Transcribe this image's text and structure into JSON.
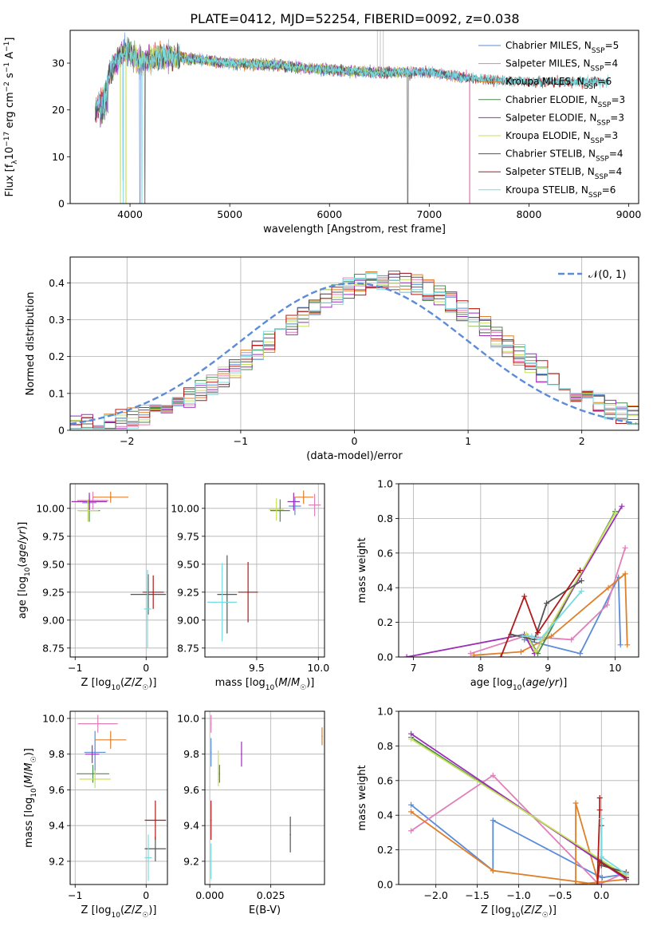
{
  "figure": {
    "title": "PLATE=0412, MJD=52254, FIBERID=0092, z=0.038"
  },
  "colors": {
    "Chabrier MILES": "#5b8bd9",
    "Salpeter MILES": "#e07fb9",
    "Kroupa MILES": "#e07f2a",
    "Chabrier ELODIE": "#4d8a4d",
    "Salpeter ELODIE": "#9b2fb8",
    "Kroupa ELODIE": "#c7e05a",
    "Chabrier STELIB": "#555555",
    "Salpeter STELIB": "#b01a1a",
    "Kroupa STELIB": "#78dbe0",
    "normal": "#5b8bd9"
  },
  "chart_data": [
    {
      "id": "spectrum",
      "type": "line",
      "xlabel": "wavelength [Angstrom, rest frame]",
      "ylabel": "Flux [f_λ 10^-17 erg cm^-2 s^-1 A^-1]",
      "xlim": [
        3400,
        9100
      ],
      "ylim": [
        0,
        37
      ],
      "xticks": [
        4000,
        5000,
        6000,
        7000,
        8000,
        9000
      ],
      "yticks": [
        0,
        10,
        20,
        30
      ],
      "grid": false,
      "legend_position": "right",
      "legend": [
        {
          "label": "Chabrier MILES, N_SSP=5",
          "key": "Chabrier MILES"
        },
        {
          "label": "Salpeter MILES, N_SSP=4",
          "key": "Salpeter MILES"
        },
        {
          "label": "Kroupa MILES, N_SSP=6",
          "key": "Kroupa MILES"
        },
        {
          "label": "Chabrier ELODIE, N_SSP=3",
          "key": "Chabrier ELODIE"
        },
        {
          "label": "Salpeter ELODIE, N_SSP=3",
          "key": "Salpeter ELODIE"
        },
        {
          "label": "Kroupa ELODIE, N_SSP=3",
          "key": "Kroupa ELODIE"
        },
        {
          "label": "Chabrier STELIB, N_SSP=4",
          "key": "Chabrier STELIB"
        },
        {
          "label": "Salpeter STELIB, N_SSP=4",
          "key": "Salpeter STELIB"
        },
        {
          "label": "Kroupa STELIB, N_SSP=6",
          "key": "Kroupa STELIB"
        }
      ],
      "continuum": [
        [
          3650,
          19
        ],
        [
          3800,
          28
        ],
        [
          3950,
          33
        ],
        [
          4100,
          30
        ],
        [
          4300,
          31.5
        ],
        [
          4600,
          31
        ],
        [
          5000,
          30
        ],
        [
          5500,
          29.5
        ],
        [
          6000,
          28.5
        ],
        [
          6500,
          28
        ],
        [
          7000,
          28
        ],
        [
          7500,
          26.5
        ],
        [
          8000,
          26
        ],
        [
          8500,
          26
        ],
        [
          8800,
          26
        ]
      ],
      "wavelength_range": {
        "Chabrier MILES": [
          3650,
          7400
        ],
        "Salpeter MILES": [
          3650,
          7400
        ],
        "Kroupa MILES": [
          3650,
          7410
        ],
        "Chabrier ELODIE": [
          3650,
          6790
        ],
        "Salpeter ELODIE": [
          3650,
          6790
        ],
        "Kroupa ELODIE": [
          3900,
          6790
        ],
        "Chabrier STELIB": [
          3650,
          8800
        ],
        "Salpeter STELIB": [
          3650,
          8800
        ],
        "Kroupa STELIB": [
          3650,
          8800
        ]
      }
    },
    {
      "id": "residuals",
      "type": "line",
      "xlabel": "(data-model)/error",
      "ylabel": "Normed distribution",
      "xlim": [
        -2.5,
        2.5
      ],
      "ylim": [
        0,
        0.47
      ],
      "xticks": [
        -2,
        -1,
        0,
        1,
        2
      ],
      "yticks": [
        0.0,
        0.1,
        0.2,
        0.3,
        0.4
      ],
      "grid": true,
      "legend_position": "top-right",
      "normal_label": "𝒩(0, 1)",
      "bin_width": 0.1
    },
    {
      "id": "age_vs_Z",
      "type": "scatter",
      "xlabel": "Z [log10(Z/Z☉)]",
      "ylabel": "age  [log10(age/yr)]",
      "xlim": [
        -1.07,
        0.3
      ],
      "ylim": [
        8.67,
        10.22
      ],
      "xticks": [
        -1,
        0
      ],
      "yticks": [
        8.75,
        9.0,
        9.25,
        9.5,
        9.75,
        10.0
      ],
      "grid": true,
      "points": [
        {
          "key": "Chabrier MILES",
          "x": -0.8,
          "y": 10.05,
          "xerr": 0.1,
          "yerr": 0.06
        },
        {
          "key": "Salpeter MILES",
          "x": -0.75,
          "y": 10.07,
          "xerr": 0.22,
          "yerr": 0.08
        },
        {
          "key": "Kroupa MILES",
          "x": -0.5,
          "y": 10.1,
          "xerr": 0.25,
          "yerr": 0.05
        },
        {
          "key": "Chabrier ELODIE",
          "x": -0.8,
          "y": 9.98,
          "xerr": 0.15,
          "yerr": 0.1
        },
        {
          "key": "Salpeter ELODIE",
          "x": -0.8,
          "y": 10.06,
          "xerr": 0.25,
          "yerr": 0.08
        },
        {
          "key": "Kroupa ELODIE",
          "x": -0.82,
          "y": 9.98,
          "xerr": 0.15,
          "yerr": 0.1
        },
        {
          "key": "Chabrier STELIB",
          "x": 0.03,
          "y": 9.23,
          "xerr": 0.25,
          "yerr": 0.18
        },
        {
          "key": "Salpeter STELIB",
          "x": 0.1,
          "y": 9.25,
          "xerr": 0.15,
          "yerr": 0.15
        },
        {
          "key": "Kroupa STELIB",
          "x": 0.02,
          "y": 9.1,
          "xerr": 0.05,
          "yerr": 0.35
        }
      ]
    },
    {
      "id": "age_vs_mass",
      "type": "scatter",
      "xlabel": "mass [log10(M/M☉)]",
      "ylabel": "",
      "xlim": [
        9.08,
        10.05
      ],
      "ylim": [
        8.67,
        10.22
      ],
      "xticks": [
        9.5,
        10.0
      ],
      "yticks": [
        8.75,
        9.0,
        9.25,
        9.5,
        9.75,
        10.0
      ],
      "grid": true,
      "points": [
        {
          "key": "Chabrier MILES",
          "x": 9.81,
          "y": 10.02,
          "xerr": 0.05,
          "yerr": 0.08
        },
        {
          "key": "Salpeter MILES",
          "x": 9.97,
          "y": 10.03,
          "xerr": 0.05,
          "yerr": 0.1
        },
        {
          "key": "Kroupa MILES",
          "x": 9.88,
          "y": 10.1,
          "xerr": 0.08,
          "yerr": 0.06
        },
        {
          "key": "Chabrier ELODIE",
          "x": 9.69,
          "y": 9.98,
          "xerr": 0.08,
          "yerr": 0.1
        },
        {
          "key": "Salpeter ELODIE",
          "x": 9.8,
          "y": 10.06,
          "xerr": 0.05,
          "yerr": 0.08
        },
        {
          "key": "Kroupa ELODIE",
          "x": 9.66,
          "y": 9.99,
          "xerr": 0.06,
          "yerr": 0.1
        },
        {
          "key": "Chabrier STELIB",
          "x": 9.26,
          "y": 9.23,
          "xerr": 0.08,
          "yerr": 0.35
        },
        {
          "key": "Salpeter STELIB",
          "x": 9.43,
          "y": 9.25,
          "xerr": 0.08,
          "yerr": 0.27
        },
        {
          "key": "Kroupa STELIB",
          "x": 9.22,
          "y": 9.16,
          "xerr": 0.12,
          "yerr": 0.35
        }
      ]
    },
    {
      "id": "weight_vs_age",
      "type": "line",
      "xlabel": "age  [log10(age/yr)]",
      "ylabel": "mass weight",
      "xlim": [
        6.78,
        10.35
      ],
      "ylim": [
        0,
        1.0
      ],
      "xticks": [
        7,
        8,
        9,
        10
      ],
      "yticks": [
        0.0,
        0.2,
        0.4,
        0.6,
        0.8,
        1.0
      ],
      "grid": true,
      "series": [
        {
          "key": "Chabrier MILES",
          "x": [
            8.65,
            9.48,
            10.05,
            10.08
          ],
          "y": [
            0.1,
            0.02,
            0.46,
            0.07
          ]
        },
        {
          "key": "Salpeter MILES",
          "x": [
            7.85,
            8.65,
            9.35,
            9.88,
            10.15
          ],
          "y": [
            0.02,
            0.12,
            0.1,
            0.3,
            0.63
          ]
        },
        {
          "key": "Kroupa MILES",
          "x": [
            7.9,
            8.6,
            9.05,
            9.9,
            10.15,
            10.18
          ],
          "y": [
            0.01,
            0.03,
            0.12,
            0.4,
            0.48,
            0.07
          ]
        },
        {
          "key": "Chabrier ELODIE",
          "x": [
            8.7,
            8.85,
            10.0
          ],
          "y": [
            0.12,
            0.02,
            0.84
          ]
        },
        {
          "key": "Salpeter ELODIE",
          "x": [
            6.9,
            8.65,
            8.8,
            10.1
          ],
          "y": [
            0.0,
            0.13,
            0.02,
            0.87
          ]
        },
        {
          "key": "Kroupa ELODIE",
          "x": [
            8.68,
            8.82,
            10.0
          ],
          "y": [
            0.13,
            0.03,
            0.83
          ]
        },
        {
          "key": "Chabrier STELIB",
          "x": [
            8.45,
            8.8,
            8.98,
            9.5
          ],
          "y": [
            0.13,
            0.1,
            0.31,
            0.44
          ]
        },
        {
          "key": "Salpeter STELIB",
          "x": [
            8.3,
            8.65,
            8.85,
            9.48
          ],
          "y": [
            0.0,
            0.35,
            0.14,
            0.5
          ]
        },
        {
          "key": "Kroupa STELIB",
          "x": [
            8.62,
            8.76,
            8.88,
            9.5
          ],
          "y": [
            0.12,
            0.12,
            0.1,
            0.38
          ]
        }
      ]
    },
    {
      "id": "mass_vs_Z",
      "type": "scatter",
      "xlabel": "Z [log10(Z/Z☉)]",
      "ylabel": "mass [log10(M/M☉)]",
      "xlim": [
        -1.07,
        0.3
      ],
      "ylim": [
        9.07,
        10.04
      ],
      "xticks": [
        -1,
        0
      ],
      "yticks": [
        9.2,
        9.4,
        9.6,
        9.8,
        10.0
      ],
      "grid": true,
      "points": [
        {
          "key": "Chabrier MILES",
          "x": -0.72,
          "y": 9.81,
          "xerr": 0.15,
          "yerr": 0.12
        },
        {
          "key": "Salpeter MILES",
          "x": -0.68,
          "y": 9.97,
          "xerr": 0.28,
          "yerr": 0.05
        },
        {
          "key": "Kroupa MILES",
          "x": -0.5,
          "y": 9.88,
          "xerr": 0.22,
          "yerr": 0.05
        },
        {
          "key": "Chabrier ELODIE",
          "x": -0.75,
          "y": 9.69,
          "xerr": 0.23,
          "yerr": 0.05
        },
        {
          "key": "Salpeter ELODIE",
          "x": -0.76,
          "y": 9.8,
          "xerr": 0.1,
          "yerr": 0.05
        },
        {
          "key": "Kroupa ELODIE",
          "x": -0.72,
          "y": 9.66,
          "xerr": 0.22,
          "yerr": 0.05
        },
        {
          "key": "Chabrier STELIB",
          "x": 0.13,
          "y": 9.27,
          "xerr": 0.15,
          "yerr": 0.07
        },
        {
          "key": "Salpeter STELIB",
          "x": 0.13,
          "y": 9.43,
          "xerr": 0.15,
          "yerr": 0.11
        },
        {
          "key": "Kroupa STELIB",
          "x": 0.03,
          "y": 9.22,
          "xerr": 0.05,
          "yerr": 0.13
        }
      ]
    },
    {
      "id": "mass_vs_EBV",
      "type": "scatter",
      "xlabel": "E(B-V)",
      "ylabel": "",
      "xlim": [
        -0.002,
        0.047
      ],
      "ylim": [
        9.07,
        10.04
      ],
      "xticks": [
        0.0,
        0.025
      ],
      "xticklabels": [
        "0.000",
        "0.025"
      ],
      "yticks": [
        9.2,
        9.4,
        9.6,
        9.8,
        10.0
      ],
      "grid": true,
      "points": [
        {
          "key": "Chabrier MILES",
          "x": 0.0005,
          "y": 9.81,
          "yerr": 0.08
        },
        {
          "key": "Salpeter MILES",
          "x": 0.0005,
          "y": 9.97,
          "yerr": 0.05
        },
        {
          "key": "Kroupa MILES",
          "x": 0.046,
          "y": 9.9,
          "yerr": 0.05
        },
        {
          "key": "Chabrier ELODIE",
          "x": 0.004,
          "y": 9.69,
          "yerr": 0.05
        },
        {
          "key": "Salpeter ELODIE",
          "x": 0.013,
          "y": 9.8,
          "yerr": 0.07
        },
        {
          "key": "Kroupa ELODIE",
          "x": 0.0035,
          "y": 9.72,
          "yerr": 0.1
        },
        {
          "key": "Chabrier STELIB",
          "x": 0.033,
          "y": 9.35,
          "yerr": 0.1
        },
        {
          "key": "Salpeter STELIB",
          "x": 0.0005,
          "y": 9.43,
          "yerr": 0.11
        },
        {
          "key": "Kroupa STELIB",
          "x": 0.0005,
          "y": 9.2,
          "yerr": 0.1
        }
      ]
    },
    {
      "id": "weight_vs_Z",
      "type": "line",
      "xlabel": "Z [log10(Z/Z☉)]",
      "ylabel": "mass weight",
      "xlim": [
        -2.45,
        0.45
      ],
      "ylim": [
        0,
        1.0
      ],
      "xticks": [
        -2.0,
        -1.5,
        -1.0,
        -0.5,
        0.0
      ],
      "yticks": [
        0.0,
        0.2,
        0.4,
        0.6,
        0.8,
        1.0
      ],
      "grid": true,
      "series": [
        {
          "key": "Chabrier MILES",
          "x": [
            -2.3,
            -1.31,
            -1.31,
            -0.04,
            0.01,
            0.3
          ],
          "y": [
            0.46,
            0.08,
            0.37,
            0.05,
            0.04,
            0.06
          ]
        },
        {
          "key": "Salpeter MILES",
          "x": [
            -2.3,
            -1.31,
            -0.03,
            0.3
          ],
          "y": [
            0.31,
            0.63,
            0.0,
            0.07
          ]
        },
        {
          "key": "Kroupa MILES",
          "x": [
            -2.3,
            -1.31,
            -0.03,
            -0.31,
            -0.31,
            0.3
          ],
          "y": [
            0.42,
            0.08,
            0.0,
            0.47,
            0.0,
            0.03
          ]
        },
        {
          "key": "Chabrier ELODIE",
          "x": [
            -2.3,
            0.3
          ],
          "y": [
            0.85,
            0.04
          ]
        },
        {
          "key": "Salpeter ELODIE",
          "x": [
            -2.3,
            0.3
          ],
          "y": [
            0.87,
            0.03
          ]
        },
        {
          "key": "Kroupa ELODIE",
          "x": [
            -2.3,
            0.3
          ],
          "y": [
            0.84,
            0.05
          ]
        },
        {
          "key": "Chabrier STELIB",
          "x": [
            0.0,
            0.0,
            0.3
          ],
          "y": [
            0.34,
            0.11,
            0.07
          ]
        },
        {
          "key": "Salpeter STELIB",
          "x": [
            -0.02,
            -0.02,
            -0.05,
            -0.02,
            0.3
          ],
          "y": [
            0.5,
            0.43,
            0.0,
            0.13,
            0.04
          ]
        },
        {
          "key": "Kroupa STELIB",
          "x": [
            0.0,
            0.0,
            0.3
          ],
          "y": [
            0.38,
            0.16,
            0.06
          ]
        }
      ]
    }
  ]
}
